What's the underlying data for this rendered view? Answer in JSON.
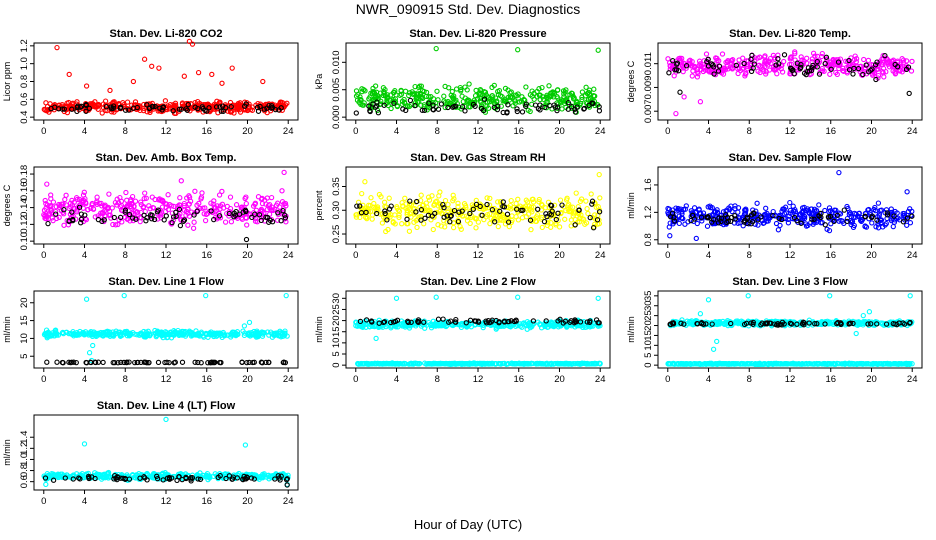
{
  "title": "NWR_090915  Std. Dev. Diagnostics",
  "xlabel": "Hour of Day (UTC)",
  "chart_data": [
    {
      "type": "scatter",
      "title": "Stan. Dev. Li-820 CO2",
      "ylabel": "Licor ppm",
      "xlim": [
        0,
        24
      ],
      "ylim": [
        0.4,
        1.2
      ],
      "xticks": [
        0,
        4,
        8,
        12,
        16,
        20,
        24
      ],
      "yticks": [
        0.4,
        0.6,
        0.8,
        1.0,
        1.2
      ],
      "ytick_labels": [
        "0.4",
        "0.6",
        "0.8",
        "1.0",
        "1.2"
      ],
      "series": [
        {
          "color": "#ff0000",
          "band": [
            0.43,
            0.6
          ],
          "outliers": [
            [
              1.3,
              1.18
            ],
            [
              2.5,
              0.88
            ],
            [
              9.9,
              1.05
            ],
            [
              10.6,
              0.97
            ],
            [
              11.3,
              0.95
            ],
            [
              13.8,
              0.86
            ],
            [
              14.3,
              1.25
            ],
            [
              14.6,
              1.22
            ],
            [
              15.2,
              0.9
            ],
            [
              16.5,
              0.88
            ],
            [
              18.5,
              0.95
            ],
            [
              21.5,
              0.8
            ],
            [
              4.2,
              0.75
            ],
            [
              6.5,
              0.7
            ],
            [
              8.8,
              0.8
            ],
            [
              17.5,
              0.78
            ]
          ]
        },
        {
          "color": "#000000",
          "band": [
            0.45,
            0.56
          ],
          "outliers": []
        }
      ]
    },
    {
      "type": "scatter",
      "title": "Stan. Dev. Li-820 Pressure",
      "ylabel": "kPa",
      "xlim": [
        0,
        24
      ],
      "ylim": [
        0,
        0.013
      ],
      "xticks": [
        0,
        4,
        8,
        12,
        16,
        20,
        24
      ],
      "yticks": [
        0,
        0.005,
        0.01
      ],
      "ytick_labels": [
        "0.000",
        "0.005",
        "0.010"
      ],
      "series": [
        {
          "color": "#00cc00",
          "band": [
            0.0,
            0.0065
          ],
          "outliers": [
            [
              7.9,
              0.0125
            ],
            [
              15.9,
              0.0123
            ],
            [
              23.8,
              0.0122
            ]
          ]
        },
        {
          "color": "#000000",
          "band": [
            0.0,
            0.0035
          ],
          "outliers": []
        }
      ]
    },
    {
      "type": "scatter",
      "title": "Stan. Dev. Li-820 Temp.",
      "ylabel": "degrees C",
      "xlim": [
        0,
        24
      ],
      "ylim": [
        0.0065,
        0.0125
      ],
      "xticks": [
        0,
        4,
        8,
        12,
        16,
        20,
        24
      ],
      "yticks": [
        0.007,
        0.009,
        0.011
      ],
      "ytick_labels": [
        "0.007",
        "0.009",
        "0.011"
      ],
      "series": [
        {
          "color": "#ff00ff",
          "band": [
            0.0095,
            0.0122
          ],
          "outliers": [
            [
              0.8,
              0.0068
            ],
            [
              1.6,
              0.0082
            ],
            [
              3.2,
              0.0078
            ]
          ]
        },
        {
          "color": "#000000",
          "band": [
            0.0095,
            0.012
          ],
          "outliers": [
            [
              1.2,
              0.0086
            ],
            [
              23.7,
              0.0085
            ]
          ]
        }
      ]
    },
    {
      "type": "scatter",
      "title": "Stan. Dev. Amb. Box Temp.",
      "ylabel": "degrees C",
      "xlim": [
        0,
        24
      ],
      "ylim": [
        0.1,
        0.185
      ],
      "xticks": [
        0,
        4,
        8,
        12,
        16,
        20,
        24
      ],
      "yticks": [
        0.1,
        0.12,
        0.14,
        0.16,
        0.18
      ],
      "ytick_labels": [
        "0.10",
        "0.12",
        "0.14",
        "0.16",
        "0.18"
      ],
      "series": [
        {
          "color": "#ff00ff",
          "band": [
            0.112,
            0.165
          ],
          "outliers": [
            [
              23.6,
              0.182
            ],
            [
              0.3,
              0.168
            ],
            [
              13.5,
              0.172
            ]
          ]
        },
        {
          "color": "#000000",
          "band": [
            0.115,
            0.145
          ],
          "outliers": [
            [
              19.9,
              0.102
            ]
          ]
        }
      ]
    },
    {
      "type": "scatter",
      "title": "Stan. Dev. Gas Stream RH",
      "ylabel": "percent",
      "xlim": [
        0,
        24
      ],
      "ylim": [
        0.235,
        0.385
      ],
      "xticks": [
        0,
        4,
        8,
        12,
        16,
        20,
        24
      ],
      "yticks": [
        0.25,
        0.3,
        0.35
      ],
      "ytick_labels": [
        "0.25",
        "0.30",
        "0.35"
      ],
      "series": [
        {
          "color": "#ffff00",
          "band": [
            0.245,
            0.345
          ],
          "outliers": [
            [
              23.9,
              0.375
            ],
            [
              0.9,
              0.36
            ]
          ]
        },
        {
          "color": "#000000",
          "band": [
            0.25,
            0.34
          ],
          "outliers": []
        }
      ]
    },
    {
      "type": "scatter",
      "title": "Stan. Dev. Sample Flow",
      "ylabel": "ml/min",
      "xlim": [
        0,
        24
      ],
      "ylim": [
        0.78,
        1.82
      ],
      "xticks": [
        0,
        4,
        8,
        12,
        16,
        20,
        24
      ],
      "yticks": [
        0.8,
        1.2,
        1.6
      ],
      "ytick_labels": [
        "0.8",
        "1.2",
        "1.6"
      ],
      "series": [
        {
          "color": "#0000ff",
          "band": [
            0.9,
            1.38
          ],
          "outliers": [
            [
              16.8,
              1.78
            ],
            [
              0.2,
              0.86
            ],
            [
              2.8,
              0.82
            ],
            [
              23.5,
              1.5
            ]
          ]
        },
        {
          "color": "#000000",
          "band": [
            0.98,
            1.25
          ],
          "outliers": []
        }
      ]
    },
    {
      "type": "scatter",
      "title": "Stan. Dev. Line 1 Flow",
      "ylabel": "ml/min",
      "xlim": [
        0,
        24
      ],
      "ylim": [
        2.5,
        22.5
      ],
      "xticks": [
        0,
        4,
        8,
        12,
        16,
        20,
        24
      ],
      "yticks": [
        5,
        10,
        15,
        20
      ],
      "ytick_labels": [
        "5",
        "10",
        "15",
        "20"
      ],
      "series": [
        {
          "color": "#00ffff",
          "band": [
            10,
            12.5
          ],
          "outliers": [
            [
              4.2,
              21
            ],
            [
              7.9,
              22
            ],
            [
              15.9,
              22
            ],
            [
              23.8,
              22
            ],
            [
              4.5,
              6
            ],
            [
              4.8,
              8
            ],
            [
              19.7,
              13.5
            ],
            [
              20.2,
              14.5
            ],
            [
              4.7,
              3.8
            ]
          ]
        },
        {
          "color": "#000000",
          "band": [
            3.1,
            3.4
          ],
          "outliers": []
        }
      ]
    },
    {
      "type": "scatter",
      "title": "Stan. Dev. Line 2 Flow",
      "ylabel": "ml/min",
      "xlim": [
        0,
        24
      ],
      "ylim": [
        0,
        32
      ],
      "xticks": [
        0,
        4,
        8,
        12,
        16,
        20,
        24
      ],
      "yticks": [
        0,
        5,
        10,
        15,
        20,
        25,
        30
      ],
      "ytick_labels": [
        "0",
        "5",
        "10",
        "15",
        "20",
        "25",
        "30"
      ],
      "series": [
        {
          "color": "#00ffff",
          "band": [
            16,
            20.5
          ],
          "outliers": [
            [
              4.0,
              30
            ],
            [
              7.9,
              30.5
            ],
            [
              15.9,
              30.5
            ],
            [
              23.8,
              30
            ],
            [
              2,
              12
            ]
          ]
        },
        {
          "color": "#00ffff",
          "band": [
            0.3,
            1.0
          ],
          "outliers": []
        },
        {
          "color": "#000000",
          "band": [
            18.5,
            21
          ],
          "outliers": []
        }
      ]
    },
    {
      "type": "scatter",
      "title": "Stan. Dev. Line 3 Flow",
      "ylabel": "ml/min",
      "xlim": [
        0,
        24
      ],
      "ylim": [
        0,
        36
      ],
      "xticks": [
        0,
        4,
        8,
        12,
        16,
        20,
        24
      ],
      "yticks": [
        0,
        5,
        10,
        15,
        20,
        25,
        30,
        35
      ],
      "ytick_labels": [
        "0",
        "5",
        "10",
        "15",
        "20",
        "25",
        "30",
        "35"
      ],
      "series": [
        {
          "color": "#00ffff",
          "band": [
            19.5,
            23
          ],
          "outliers": [
            [
              4.0,
              33
            ],
            [
              7.9,
              35
            ],
            [
              15.9,
              35
            ],
            [
              23.8,
              35
            ],
            [
              4.5,
              8
            ],
            [
              4.8,
              12
            ],
            [
              3.2,
              26
            ],
            [
              18.5,
              16
            ],
            [
              19.8,
              27
            ],
            [
              19.2,
              25
            ]
          ]
        },
        {
          "color": "#00ffff",
          "band": [
            0.3,
            1.0
          ],
          "outliers": []
        },
        {
          "color": "#000000",
          "band": [
            20,
            22
          ],
          "outliers": []
        }
      ]
    },
    {
      "type": "scatter",
      "title": "Stan. Dev. Line 4 (LT) Flow",
      "ylabel": "ml/min",
      "xlim": [
        0,
        24
      ],
      "ylim": [
        0.5,
        1.75
      ],
      "xticks": [
        0,
        4,
        8,
        12,
        16,
        20,
        24
      ],
      "yticks": [
        0.6,
        0.8,
        1.0,
        1.2,
        1.4
      ],
      "ytick_labels": [
        "0.6",
        "0.8",
        "1.0",
        "1.2",
        "1.4"
      ],
      "series": [
        {
          "color": "#00ffff",
          "band": [
            0.62,
            0.78
          ],
          "outliers": [
            [
              12.0,
              1.72
            ],
            [
              4.0,
              1.28
            ],
            [
              19.8,
              1.26
            ],
            [
              0.2,
              0.55
            ],
            [
              23.9,
              0.55
            ]
          ]
        },
        {
          "color": "#000000",
          "band": [
            0.6,
            0.72
          ],
          "outliers": [
            [
              23.9,
              0.54
            ]
          ]
        }
      ]
    }
  ]
}
